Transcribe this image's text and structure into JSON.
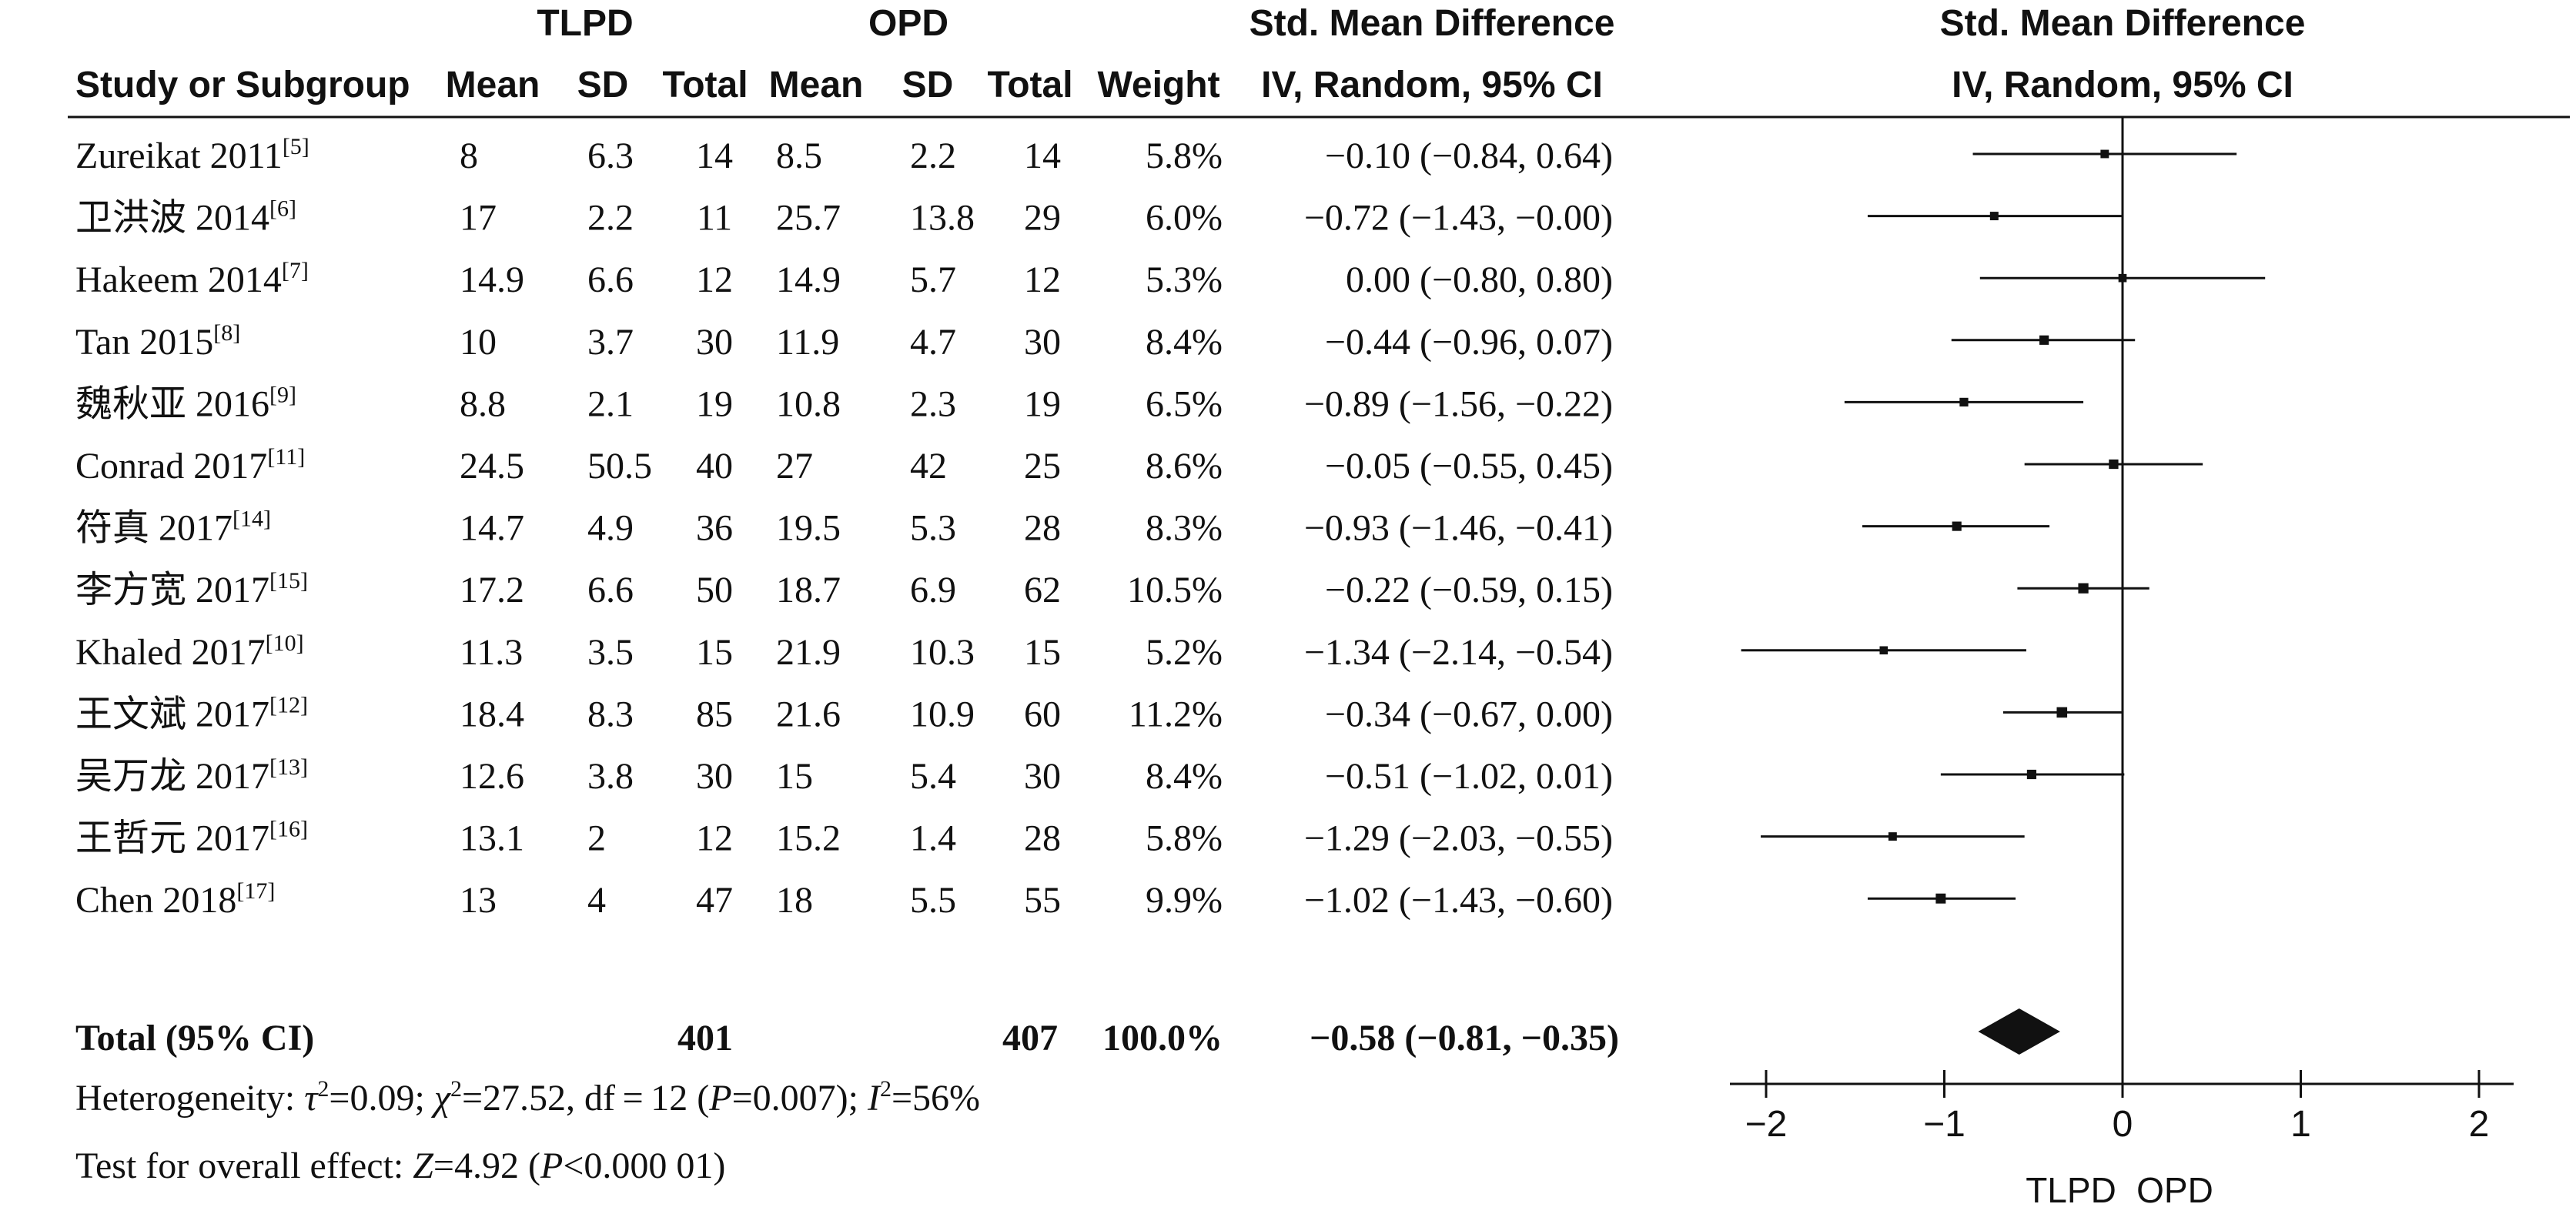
{
  "header": {
    "group1": "TLPD",
    "group2": "OPD",
    "smd_title": "Std. Mean Difference",
    "smd_method": "IV, Random, 95% CI",
    "plot_title": "Std. Mean Difference",
    "plot_method": "IV, Random, 95% CI",
    "col_study": "Study or Subgroup",
    "col_mean": "Mean",
    "col_sd": "SD",
    "col_total": "Total",
    "col_weight": "Weight"
  },
  "chart_data": {
    "type": "forest",
    "studies": [
      {
        "name": "Zureikat 2011",
        "ref": "[5]",
        "m1": "8",
        "sd1": "6.3",
        "n1": "14",
        "m2": "8.5",
        "sd2": "2.2",
        "n2": "14",
        "weight": "5.8%",
        "ci_text": "−0.10 (−0.84, 0.64)",
        "est": -0.1,
        "lo": -0.84,
        "hi": 0.64
      },
      {
        "name": "卫洪波 2014",
        "ref": "[6]",
        "m1": "17",
        "sd1": "2.2",
        "n1": "11",
        "m2": "25.7",
        "sd2": "13.8",
        "n2": "29",
        "weight": "6.0%",
        "ci_text": "−0.72 (−1.43, −0.00)",
        "est": -0.72,
        "lo": -1.43,
        "hi": -0.0
      },
      {
        "name": "Hakeem 2014",
        "ref": "[7]",
        "m1": "14.9",
        "sd1": "6.6",
        "n1": "12",
        "m2": "14.9",
        "sd2": "5.7",
        "n2": "12",
        "weight": "5.3%",
        "ci_text": "0.00 (−0.80, 0.80)",
        "est": 0.0,
        "lo": -0.8,
        "hi": 0.8
      },
      {
        "name": "Tan 2015",
        "ref": "[8]",
        "m1": "10",
        "sd1": "3.7",
        "n1": "30",
        "m2": "11.9",
        "sd2": "4.7",
        "n2": "30",
        "weight": "8.4%",
        "ci_text": "−0.44 (−0.96, 0.07)",
        "est": -0.44,
        "lo": -0.96,
        "hi": 0.07
      },
      {
        "name": "魏秋亚 2016",
        "ref": "[9]",
        "m1": "8.8",
        "sd1": "2.1",
        "n1": "19",
        "m2": "10.8",
        "sd2": "2.3",
        "n2": "19",
        "weight": "6.5%",
        "ci_text": "−0.89 (−1.56, −0.22)",
        "est": -0.89,
        "lo": -1.56,
        "hi": -0.22
      },
      {
        "name": "Conrad 2017",
        "ref": "[11]",
        "m1": "24.5",
        "sd1": "50.5",
        "n1": "40",
        "m2": "27",
        "sd2": "42",
        "n2": "25",
        "weight": "8.6%",
        "ci_text": "−0.05 (−0.55, 0.45)",
        "est": -0.05,
        "lo": -0.55,
        "hi": 0.45
      },
      {
        "name": "符真 2017",
        "ref": "[14]",
        "m1": "14.7",
        "sd1": "4.9",
        "n1": "36",
        "m2": "19.5",
        "sd2": "5.3",
        "n2": "28",
        "weight": "8.3%",
        "ci_text": "−0.93 (−1.46, −0.41)",
        "est": -0.93,
        "lo": -1.46,
        "hi": -0.41
      },
      {
        "name": "李方宽 2017",
        "ref": "[15]",
        "m1": "17.2",
        "sd1": "6.6",
        "n1": "50",
        "m2": "18.7",
        "sd2": "6.9",
        "n2": "62",
        "weight": "10.5%",
        "ci_text": "−0.22 (−0.59, 0.15)",
        "est": -0.22,
        "lo": -0.59,
        "hi": 0.15
      },
      {
        "name": "Khaled 2017",
        "ref": "[10]",
        "m1": "11.3",
        "sd1": "3.5",
        "n1": "15",
        "m2": "21.9",
        "sd2": "10.3",
        "n2": "15",
        "weight": "5.2%",
        "ci_text": "−1.34 (−2.14, −0.54)",
        "est": -1.34,
        "lo": -2.14,
        "hi": -0.54
      },
      {
        "name": "王文斌 2017",
        "ref": "[12]",
        "m1": "18.4",
        "sd1": "8.3",
        "n1": "85",
        "m2": "21.6",
        "sd2": "10.9",
        "n2": "60",
        "weight": "11.2%",
        "ci_text": "−0.34 (−0.67, 0.00)",
        "est": -0.34,
        "lo": -0.67,
        "hi": 0.0
      },
      {
        "name": "吴万龙 2017",
        "ref": "[13]",
        "m1": "12.6",
        "sd1": "3.8",
        "n1": "30",
        "m2": "15",
        "sd2": "5.4",
        "n2": "30",
        "weight": "8.4%",
        "ci_text": "−0.51 (−1.02, 0.01)",
        "est": -0.51,
        "lo": -1.02,
        "hi": 0.01
      },
      {
        "name": "王哲元 2017",
        "ref": "[16]",
        "m1": "13.1",
        "sd1": "2",
        "n1": "12",
        "m2": "15.2",
        "sd2": "1.4",
        "n2": "28",
        "weight": "5.8%",
        "ci_text": "−1.29 (−2.03, −0.55)",
        "est": -1.29,
        "lo": -2.03,
        "hi": -0.55
      },
      {
        "name": "Chen 2018",
        "ref": "[17]",
        "m1": "13",
        "sd1": "4",
        "n1": "47",
        "m2": "18",
        "sd2": "5.5",
        "n2": "55",
        "weight": "9.9%",
        "ci_text": "−1.02 (−1.43, −0.60)",
        "est": -1.02,
        "lo": -1.43,
        "hi": -0.6
      }
    ],
    "total": {
      "label": "Total (95% CI)",
      "n1": "401",
      "n2": "407",
      "weight": "100.0%",
      "ci_text": "−0.58 (−0.81, −0.35)",
      "est": -0.58,
      "lo": -0.81,
      "hi": -0.35
    },
    "heterogeneity": {
      "prefix": "Heterogeneity: ",
      "tau_sym": "τ",
      "tau_rest": "=0.09; ",
      "chi_sym": "χ",
      "chi_rest": "=27.52, df = 12 (",
      "p_sym": "P",
      "p_rest": "=0.007); ",
      "i_sym": "I",
      "i_rest": "=56%",
      "sq": "2"
    },
    "overall": {
      "prefix": "Test for overall effect: ",
      "z_sym": "Z",
      "z_rest": "=4.92 (",
      "p_sym": "P",
      "p_rest": "<0.000 01)"
    },
    "xlim": [
      -2,
      2
    ],
    "xticks": [
      "−2",
      "−1",
      "0",
      "1",
      "2"
    ],
    "xtick_values": [
      -2,
      -1,
      0,
      1,
      2
    ],
    "favors_left": "TLPD",
    "favors_right": "OPD"
  }
}
